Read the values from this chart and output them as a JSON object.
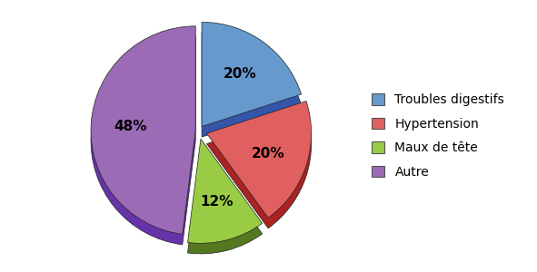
{
  "labels": [
    "Troubles digestifs",
    "Hypertension",
    "Maux de tête",
    "Autre"
  ],
  "values": [
    20,
    20,
    12,
    48
  ],
  "colors": [
    "#6699CC",
    "#E06060",
    "#99CC44",
    "#9B6BB5"
  ],
  "colors_dark": [
    "#3355AA",
    "#AA2222",
    "#557722",
    "#6633AA"
  ],
  "explode": [
    0.05,
    0.08,
    0.08,
    0.03
  ],
  "pct_labels": [
    "20%",
    "20%",
    "12%",
    "48%"
  ],
  "background_color": "#ffffff",
  "startangle": 90,
  "label_fontsize": 11,
  "legend_fontsize": 10
}
